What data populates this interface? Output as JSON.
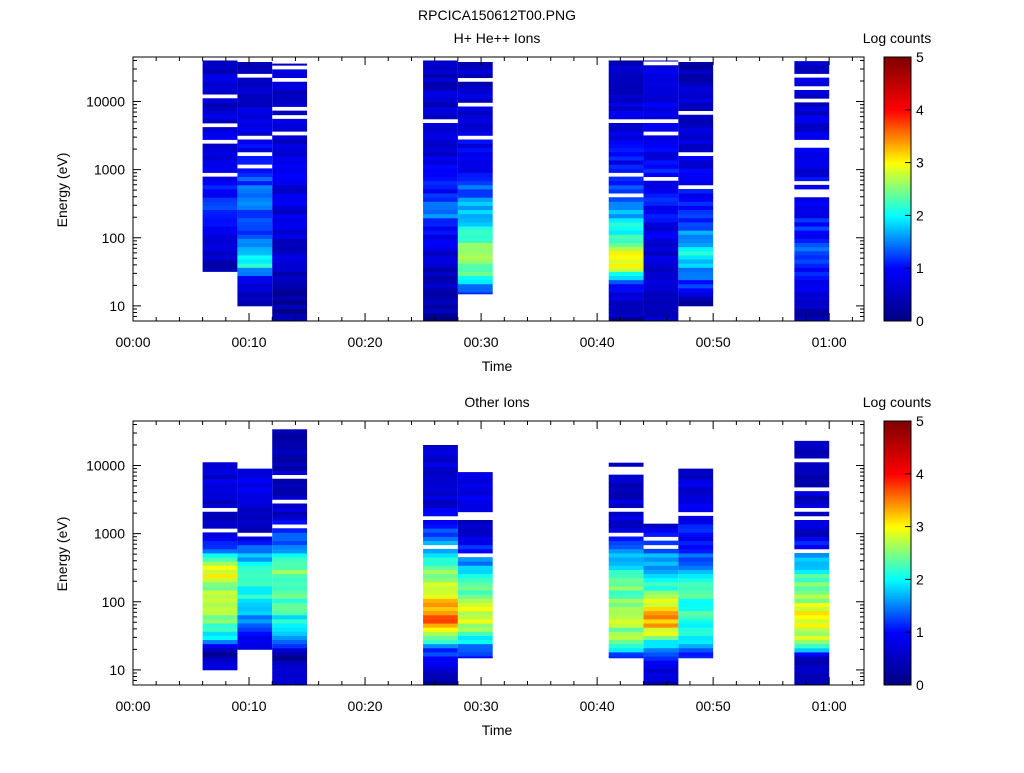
{
  "figure_title": "RPCICA150612T00.PNG",
  "colorscale": [
    "#000080",
    "#0000ff",
    "#00ffff",
    "#ffff00",
    "#ff0000",
    "#800000"
  ],
  "chart_data": [
    {
      "type": "heatmap",
      "title": "H+ He++ Ions",
      "xlabel": "Time",
      "ylabel": "Energy (eV)",
      "yscale": "log",
      "xlim": [
        "00:00",
        "01:03"
      ],
      "ylim": [
        6,
        45000
      ],
      "x_ticks": [
        "00:00",
        "00:10",
        "00:20",
        "00:30",
        "00:40",
        "00:50",
        "01:00"
      ],
      "y_ticks": [
        "10",
        "100",
        "1000",
        "10000"
      ],
      "colorbar": {
        "label": "Log counts",
        "range": [
          0,
          5
        ],
        "ticks": [
          "0",
          "1",
          "2",
          "3",
          "4",
          "5"
        ]
      },
      "columns": [
        {
          "t_start": "00:06",
          "t_end": "00:09",
          "e_min": 32,
          "e_max": 40000,
          "profile": [
            [
              32,
              0.3
            ],
            [
              80,
              0.6
            ],
            [
              200,
              1.3
            ],
            [
              500,
              1.0
            ],
            [
              2000,
              0.7
            ],
            [
              40000,
              0.6
            ]
          ]
        },
        {
          "t_start": "00:09",
          "t_end": "00:12",
          "e_min": 10,
          "e_max": 38000,
          "profile": [
            [
              10,
              0.4
            ],
            [
              25,
              0.8
            ],
            [
              40,
              2.0
            ],
            [
              60,
              1.8
            ],
            [
              150,
              1.2
            ],
            [
              400,
              1.6
            ],
            [
              1000,
              1.0
            ],
            [
              38000,
              0.4
            ]
          ]
        },
        {
          "t_start": "00:12",
          "t_end": "00:15",
          "e_min": 6,
          "e_max": 36000,
          "profile": [
            [
              6,
              0.2
            ],
            [
              50,
              0.6
            ],
            [
              500,
              0.8
            ],
            [
              36000,
              0.6
            ]
          ]
        },
        {
          "t_start": "00:25",
          "t_end": "00:28",
          "e_min": 6,
          "e_max": 40000,
          "profile": [
            [
              6,
              0.2
            ],
            [
              30,
              0.5
            ],
            [
              100,
              0.8
            ],
            [
              200,
              1.4
            ],
            [
              1000,
              0.8
            ],
            [
              40000,
              0.5
            ]
          ]
        },
        {
          "t_start": "00:28",
          "t_end": "00:31",
          "e_min": 15,
          "e_max": 38000,
          "profile": [
            [
              15,
              1.0
            ],
            [
              30,
              2.5
            ],
            [
              60,
              2.7
            ],
            [
              100,
              2.3
            ],
            [
              300,
              1.6
            ],
            [
              1000,
              1.0
            ],
            [
              38000,
              0.5
            ]
          ]
        },
        {
          "t_start": "00:41",
          "t_end": "00:44",
          "e_min": 6,
          "e_max": 40000,
          "profile": [
            [
              6,
              0.2
            ],
            [
              20,
              1.0
            ],
            [
              35,
              2.8
            ],
            [
              60,
              2.9
            ],
            [
              100,
              2.2
            ],
            [
              300,
              1.6
            ],
            [
              1000,
              1.0
            ],
            [
              40000,
              0.4
            ]
          ]
        },
        {
          "t_start": "00:44",
          "t_end": "00:47",
          "e_min": 6,
          "e_max": 40000,
          "profile": [
            [
              6,
              0.6
            ],
            [
              40,
              0.5
            ],
            [
              100,
              0.8
            ],
            [
              500,
              1.0
            ],
            [
              5000,
              0.8
            ],
            [
              40000,
              0.7
            ]
          ]
        },
        {
          "t_start": "00:47",
          "t_end": "00:50",
          "e_min": 10,
          "e_max": 38000,
          "profile": [
            [
              10,
              0.3
            ],
            [
              30,
              1.5
            ],
            [
              60,
              2.0
            ],
            [
              100,
              1.6
            ],
            [
              300,
              1.0
            ],
            [
              1000,
              0.8
            ],
            [
              38000,
              0.4
            ]
          ]
        },
        {
          "t_start": "00:57",
          "t_end": "01:00",
          "e_min": 6,
          "e_max": 40000,
          "profile": [
            [
              6,
              0.3
            ],
            [
              20,
              0.8
            ],
            [
              60,
              1.3
            ],
            [
              150,
              1.0
            ],
            [
              1000,
              0.8
            ],
            [
              40000,
              0.6
            ]
          ]
        }
      ]
    },
    {
      "type": "heatmap",
      "title": "Other Ions",
      "xlabel": "Time",
      "ylabel": "Energy (eV)",
      "yscale": "log",
      "xlim": [
        "00:00",
        "01:03"
      ],
      "ylim": [
        6,
        45000
      ],
      "x_ticks": [
        "00:00",
        "00:10",
        "00:20",
        "00:30",
        "00:40",
        "00:50",
        "01:00"
      ],
      "y_ticks": [
        "10",
        "100",
        "1000",
        "10000"
      ],
      "colorbar": {
        "label": "Log counts",
        "range": [
          0,
          5
        ],
        "ticks": [
          "0",
          "1",
          "2",
          "3",
          "4",
          "5"
        ]
      },
      "columns": [
        {
          "t_start": "00:06",
          "t_end": "00:09",
          "e_min": 10,
          "e_max": 14000,
          "profile": [
            [
              10,
              0.7
            ],
            [
              20,
              0.3
            ],
            [
              30,
              1.8
            ],
            [
              60,
              2.5
            ],
            [
              150,
              2.6
            ],
            [
              300,
              3.0
            ],
            [
              600,
              1.5
            ],
            [
              1200,
              0.5
            ],
            [
              14000,
              0.8
            ]
          ]
        },
        {
          "t_start": "00:09",
          "t_end": "00:12",
          "e_min": 20,
          "e_max": 9000,
          "profile": [
            [
              20,
              0.6
            ],
            [
              40,
              1.4
            ],
            [
              100,
              2.0
            ],
            [
              300,
              2.1
            ],
            [
              700,
              1.3
            ],
            [
              1100,
              0.5
            ],
            [
              9000,
              0.9
            ]
          ]
        },
        {
          "t_start": "00:12",
          "t_end": "00:15",
          "e_min": 6,
          "e_max": 34000,
          "profile": [
            [
              6,
              0.6
            ],
            [
              15,
              0.3
            ],
            [
              30,
              1.7
            ],
            [
              100,
              2.3
            ],
            [
              300,
              2.4
            ],
            [
              900,
              1.3
            ],
            [
              2000,
              0.6
            ],
            [
              34000,
              0.4
            ]
          ]
        },
        {
          "t_start": "00:25",
          "t_end": "00:28",
          "e_min": 6,
          "e_max": 20000,
          "profile": [
            [
              6,
              0.2
            ],
            [
              20,
              1.2
            ],
            [
              40,
              3.2
            ],
            [
              50,
              3.6
            ],
            [
              80,
              3.3
            ],
            [
              200,
              2.7
            ],
            [
              600,
              1.8
            ],
            [
              1500,
              0.8
            ],
            [
              20000,
              0.6
            ]
          ]
        },
        {
          "t_start": "00:28",
          "t_end": "00:31",
          "e_min": 15,
          "e_max": 8000,
          "profile": [
            [
              15,
              1.0
            ],
            [
              25,
              1.8
            ],
            [
              50,
              2.9
            ],
            [
              100,
              2.7
            ],
            [
              300,
              1.8
            ],
            [
              1000,
              0.6
            ],
            [
              8000,
              0.8
            ]
          ]
        },
        {
          "t_start": "00:41",
          "t_end": "00:44",
          "e_min": 15,
          "e_max": 11000,
          "profile": [
            [
              15,
              1.0
            ],
            [
              25,
              2.6
            ],
            [
              80,
              2.6
            ],
            [
              200,
              2.3
            ],
            [
              500,
              1.6
            ],
            [
              900,
              1.0
            ],
            [
              1500,
              0.6
            ],
            [
              11000,
              0.5
            ]
          ]
        },
        {
          "t_start": "00:44",
          "t_end": "00:47",
          "e_min": 6,
          "e_max": 1400,
          "profile": [
            [
              6,
              0.5
            ],
            [
              20,
              1.3
            ],
            [
              30,
              2.6
            ],
            [
              50,
              3.4
            ],
            [
              80,
              3.1
            ],
            [
              200,
              2.0
            ],
            [
              700,
              1.4
            ],
            [
              1400,
              0.6
            ]
          ]
        },
        {
          "t_start": "00:47",
          "t_end": "00:50",
          "e_min": 15,
          "e_max": 9000,
          "profile": [
            [
              15,
              1.0
            ],
            [
              30,
              1.9
            ],
            [
              80,
              2.3
            ],
            [
              200,
              2.0
            ],
            [
              500,
              1.3
            ],
            [
              800,
              1.0
            ],
            [
              9000,
              0.6
            ]
          ]
        },
        {
          "t_start": "00:57",
          "t_end": "01:00",
          "e_min": 6,
          "e_max": 23000,
          "profile": [
            [
              6,
              0.2
            ],
            [
              15,
              0.6
            ],
            [
              25,
              2.6
            ],
            [
              60,
              3.0
            ],
            [
              150,
              2.5
            ],
            [
              300,
              2.0
            ],
            [
              600,
              1.2
            ],
            [
              1000,
              0.6
            ],
            [
              23000,
              0.5
            ]
          ]
        }
      ]
    }
  ]
}
